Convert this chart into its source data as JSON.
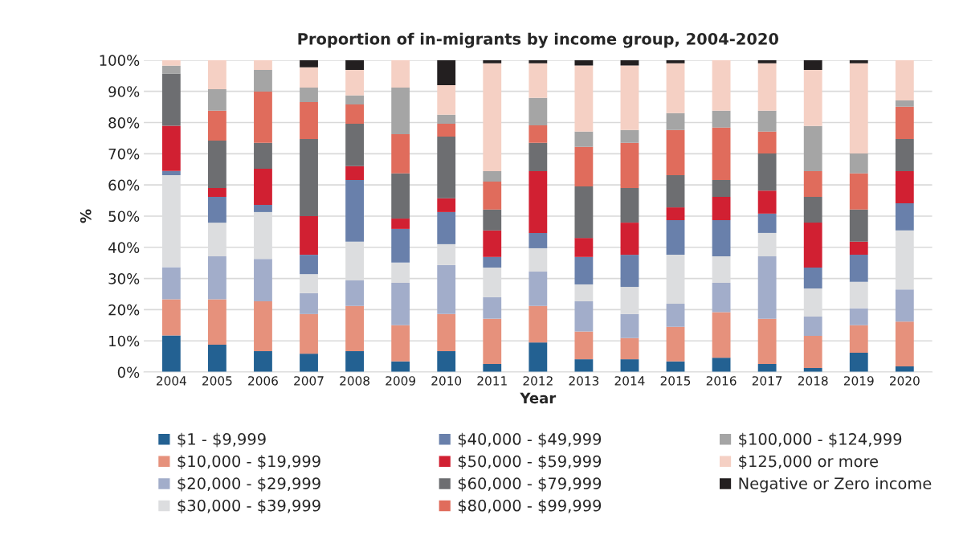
{
  "chart_data": {
    "type": "bar",
    "title": "Proportion of in-migrants by income group, 2004-2020",
    "xlabel": "Year",
    "ylabel": "%",
    "categories": [
      "2004",
      "2005",
      "2006",
      "2007",
      "2008",
      "2009",
      "2010",
      "2011",
      "2012",
      "2013",
      "2014",
      "2015",
      "2016",
      "2017",
      "2018",
      "2019",
      "2020"
    ],
    "stacked": true,
    "ylim": [
      0,
      100
    ],
    "yticks": [
      {
        "value": 0,
        "label": "0%"
      },
      {
        "value": 10,
        "label": "10%"
      },
      {
        "value": 20,
        "label": "20%"
      },
      {
        "value": 30,
        "label": "30%"
      },
      {
        "value": 40,
        "label": "40%"
      },
      {
        "value": 50,
        "label": "50%"
      },
      {
        "value": 60,
        "label": "60%"
      },
      {
        "value": 70,
        "label": "70%"
      },
      {
        "value": 80,
        "label": "80%"
      },
      {
        "value": 90,
        "label": "90%"
      },
      {
        "value": 100,
        "label": "100%"
      }
    ],
    "grid": "y",
    "legend": "bottom",
    "series": [
      {
        "name": "$1 - $9,999",
        "color": "#236192",
        "values": [
          11.7,
          8.8,
          6.7,
          5.9,
          6.7,
          3.4,
          6.7,
          2.6,
          9.5,
          4.1,
          4.1,
          3.4,
          4.6,
          2.6,
          1.3,
          6.2,
          1.8
        ]
      },
      {
        "name": "$10,000 - $19,999",
        "color": "#e6917c",
        "values": [
          11.6,
          14.5,
          16.0,
          12.7,
          14.5,
          11.6,
          11.9,
          14.5,
          11.7,
          8.9,
          6.8,
          11.1,
          14.6,
          14.5,
          10.3,
          8.8,
          14.4
        ]
      },
      {
        "name": "$20,000 - $29,999",
        "color": "#a2adca",
        "values": [
          10.3,
          13.8,
          13.6,
          6.7,
          8.2,
          13.6,
          15.7,
          6.9,
          11.0,
          9.7,
          7.7,
          7.4,
          9.4,
          20.0,
          6.2,
          5.4,
          10.3
        ]
      },
      {
        "name": "$30,000 - $39,999",
        "color": "#dcdddf",
        "values": [
          29.5,
          10.8,
          15.0,
          6.1,
          12.4,
          6.5,
          6.7,
          9.5,
          7.5,
          5.4,
          8.7,
          15.7,
          8.5,
          7.5,
          9.0,
          8.5,
          18.9
        ]
      },
      {
        "name": "$40,000 - $49,999",
        "color": "#6980ab",
        "values": [
          1.4,
          8.3,
          2.3,
          6.2,
          19.8,
          10.8,
          10.3,
          3.4,
          4.9,
          8.8,
          10.3,
          11.1,
          11.6,
          6.2,
          6.7,
          8.7,
          8.7
        ]
      },
      {
        "name": "$50,000 - $59,999",
        "color": "#d12032",
        "values": [
          14.5,
          2.8,
          11.6,
          12.4,
          4.4,
          3.3,
          4.4,
          8.5,
          19.8,
          6.1,
          10.3,
          4.1,
          7.5,
          7.4,
          14.4,
          4.2,
          10.3
        ]
      },
      {
        "name": "$60,000 - $79,999",
        "color": "#6d6e71",
        "values": [
          16.7,
          15.2,
          8.3,
          24.7,
          13.6,
          14.5,
          19.8,
          6.7,
          9.1,
          16.5,
          11.1,
          10.3,
          5.4,
          11.9,
          8.3,
          10.3,
          10.3
        ]
      },
      {
        "name": "$80,000 - $99,999",
        "color": "#e06c5c",
        "values": [
          0,
          9.6,
          16.4,
          11.9,
          6.2,
          12.6,
          4.1,
          9.0,
          5.6,
          12.7,
          14.5,
          14.5,
          16.8,
          7.0,
          8.2,
          11.6,
          10.4
        ]
      },
      {
        "name": "$100,000 - $124,999",
        "color": "#a5a5a5",
        "values": [
          2.5,
          6.9,
          7.0,
          4.6,
          2.9,
          14.9,
          2.9,
          3.3,
          8.8,
          4.9,
          4.1,
          5.4,
          5.4,
          6.7,
          14.5,
          6.4,
          2.0
        ]
      },
      {
        "name": "$125,000 or more",
        "color": "#f5d0c4",
        "values": [
          1.8,
          9.3,
          3.1,
          6.5,
          8.2,
          8.8,
          9.5,
          34.6,
          11.1,
          21.2,
          20.7,
          16.0,
          16.2,
          15.2,
          18.0,
          28.9,
          12.9
        ]
      },
      {
        "name": "Negative or Zero income",
        "color": "#231f20",
        "values": [
          0,
          0,
          0,
          2.3,
          3.1,
          0,
          8.0,
          1.0,
          1.0,
          1.7,
          1.7,
          1.0,
          0,
          1.0,
          3.1,
          1.0,
          0
        ]
      }
    ]
  }
}
